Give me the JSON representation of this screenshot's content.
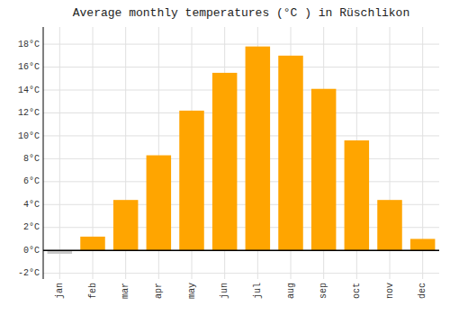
{
  "chart_data": {
    "type": "bar",
    "title": "Average monthly temperatures (°C ) in Rüschlikon",
    "categories": [
      "jan",
      "feb",
      "mar",
      "apr",
      "may",
      "jun",
      "jul",
      "aug",
      "sep",
      "oct",
      "nov",
      "dec"
    ],
    "values": [
      -0.3,
      1.2,
      4.4,
      8.3,
      12.2,
      15.5,
      17.8,
      17.0,
      14.1,
      9.6,
      4.4,
      1.0
    ],
    "colors": [
      "#C8C8C8",
      "#FFA500",
      "#FFA500",
      "#FFA500",
      "#FFA500",
      "#FFA500",
      "#FFA500",
      "#FFA500",
      "#FFA500",
      "#FFA500",
      "#FFA500",
      "#FFA500"
    ],
    "ylim": [
      -2.5,
      19.5
    ],
    "yticks": [
      {
        "value": -2,
        "label": "-2°C"
      },
      {
        "value": 0,
        "label": "0°C"
      },
      {
        "value": 2,
        "label": "2°C"
      },
      {
        "value": 4,
        "label": "4°C"
      },
      {
        "value": 6,
        "label": "6°C"
      },
      {
        "value": 8,
        "label": "8°C"
      },
      {
        "value": 10,
        "label": "10°C"
      },
      {
        "value": 12,
        "label": "12°C"
      },
      {
        "value": 14,
        "label": "14°C"
      },
      {
        "value": 16,
        "label": "16°C"
      },
      {
        "value": 18,
        "label": "18°C"
      }
    ],
    "grid": true
  }
}
